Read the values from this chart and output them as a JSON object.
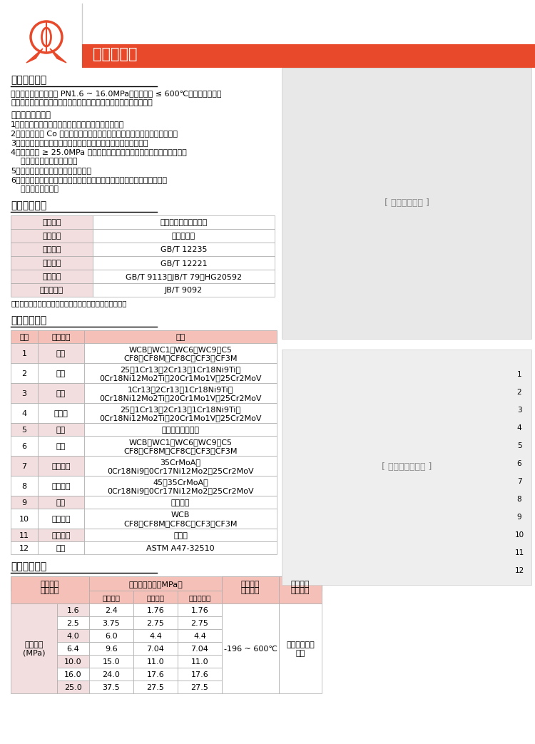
{
  "title": "法兰截止阀",
  "bg_color": "#ffffff",
  "header_color": "#E8492A",
  "header_text_color": "#ffffff",
  "table_header_bg": "#F5C0B8",
  "table_alt_bg": "#F2DEDE",
  "table_white_bg": "#ffffff",
  "table_border_color": "#aaaaaa",
  "section1_title": "产品结构特点",
  "section1_intro1": "截止阀适用于公称压力 PN1.6 ~ 16.0MPa，工作温度 ≤ 600℃的石油、化工、",
  "section1_intro2": "制药、化肥、电力行业等各种工况的管路上，切断或接通管路介质。",
  "section1_subtitle": "其主要结构特点：",
  "section1_points": [
    "1、产品结构合理、密封可靠、性能优良、造型美观。",
    "2、密封面堆焊 Co 基硬质合金，耐磨、耐蚀、抗擦伤性能好，使用寿命长。",
    "3、阀杆经调质及表面氮化处理，有良好的抗腐蚀性及抗擦伤性。",
    "4、公称压力 ≥ 25.0MPa 中腔采用自紧密封式结构，密封性能随压力升高",
    "    而增强，保证了密封性能。",
    "5、阀门设有倒密封结构，密封可靠。",
    "6、零件材质及法兰、对焊端尺寸可根据实际工况或用户要求合理选配，满",
    "    足各种工程需要。"
  ],
  "section2_title": "产品采用标准",
  "standards_headers": [
    "结构形式",
    "驱动方式",
    "设计标准",
    "结构长度",
    "连接法兰",
    "试验和检验"
  ],
  "standards_values": [
    "栓楔阀盖明杆支架结构",
    "手动、电动",
    "GB/T 12235",
    "GB/T 12221",
    "GB/T 9113、JB/T 79、HG20592",
    "JB/T 9092"
  ],
  "standards_note": "注：阀门连接法兰及对焊端尺寸可根据用户要求设计制造。",
  "section3_title": "主要零件材料",
  "mat_col_headers": [
    "序号",
    "零件名称",
    "材质"
  ],
  "mat_rows": [
    [
      "1",
      "阀体",
      "WCB、WC1、WC6、WC9、C5",
      "CF8、CF8M、CF8C、CF3、CF3M"
    ],
    [
      "2",
      "阀瓣",
      "25、1Cr13、2Cr13、1Cr18Ni9Ti、",
      "0Cr18Ni12Mo2Ti、20Cr1Mo1V、25Cr2MoV"
    ],
    [
      "3",
      "阀杆",
      "1Cr13、2Cr13、1Cr18Ni9Ti、",
      "0Cr18Ni12Mo2Ti、20Cr1Mo1V、25Cr2MoV"
    ],
    [
      "4",
      "阀瓣盖",
      "25、1Cr13、2Cr13、1Cr18Ni9Ti、",
      "0Cr18Ni12Mo2Ti、20Cr1Mo1V、25Cr2MoV"
    ],
    [
      "5",
      "垫片",
      "柔性石墨＋不锈钢",
      ""
    ],
    [
      "6",
      "阀盖",
      "WCB、WC1、WC6、WC9、C5",
      "CF8、CF8M、CF8C、CF3、CF3M"
    ],
    [
      "7",
      "双头螺柱",
      "35CrMoA、",
      "0Cr18Ni9、0Cr17Ni12Mo2、25Cr2MoV"
    ],
    [
      "8",
      "六角螺母",
      "45、35CrMoA、",
      "0Cr18Ni9、0Cr17Ni12Mo2、25Cr2MoV"
    ],
    [
      "9",
      "填料",
      "柔性石墨",
      ""
    ],
    [
      "10",
      "填料压盖",
      "WCB",
      "CF8、CF8M、CF8C、CF3、CF3M"
    ],
    [
      "11",
      "阀杆螺母",
      "铜合金",
      ""
    ],
    [
      "12",
      "手轮",
      "ASTM A47-32510",
      ""
    ]
  ],
  "section4_title": "产品性能规范",
  "perf_col1": "压力等级",
  "perf_col2": "常温试验压力（MPa）",
  "perf_sub": [
    "壳体试验",
    "密封试验",
    "上密封试验"
  ],
  "perf_col3": "适用温度",
  "perf_col4": "适用介质",
  "perf_row_header": "公称压力\n(MPa)",
  "perf_rows": [
    [
      "1.6",
      "2.4",
      "1.76",
      "1.76"
    ],
    [
      "2.5",
      "3.75",
      "2.75",
      "2.75"
    ],
    [
      "4.0",
      "6.0",
      "4.4",
      "4.4"
    ],
    [
      "6.4",
      "9.6",
      "7.04",
      "7.04"
    ],
    [
      "10.0",
      "15.0",
      "11.0",
      "11.0"
    ],
    [
      "16.0",
      "24.0",
      "17.6",
      "17.6"
    ],
    [
      "25.0",
      "37.5",
      "27.5",
      "27.5"
    ]
  ],
  "perf_temp": "-196 ~ 600℃",
  "perf_medium": "水、油品、蒸\n汽等"
}
